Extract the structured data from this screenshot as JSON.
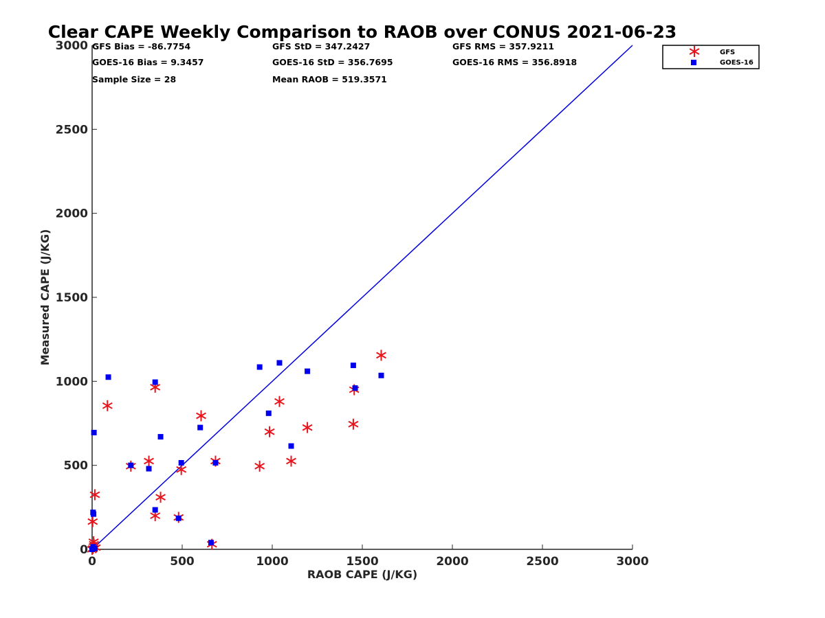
{
  "chart_data": {
    "type": "scatter",
    "title": "Clear CAPE Weekly Comparison to RAOB over CONUS 2021-06-23",
    "xlabel": "RAOB CAPE (J/KG)",
    "ylabel": "Measured CAPE (J/KG)",
    "xlim": [
      0,
      3000
    ],
    "ylim": [
      0,
      3000
    ],
    "xticks": [
      "0",
      "500",
      "1000",
      "1500",
      "2000",
      "2500",
      "3000"
    ],
    "yticks": [
      "0",
      "500",
      "1000",
      "1500",
      "2000",
      "2500",
      "3000"
    ],
    "grid": false,
    "legend_position": "top-right, outside plot",
    "reference_line": {
      "type": "y = x",
      "color": "#0000dd"
    },
    "stats": [
      [
        "GFS Bias = -86.7754",
        "GFS StD = 347.2427",
        "GFS RMS = 357.9211"
      ],
      [
        "GOES-16 Bias = 9.3457",
        "GOES-16 StD = 356.7695",
        "GOES-16 RMS = 356.8918"
      ],
      [
        "Sample Size = 28",
        "Mean RAOB = 519.3571",
        ""
      ]
    ],
    "series": [
      {
        "name": "GFS",
        "marker": "asterisk",
        "color": "#e8141c",
        "points": [
          [
            0,
            0
          ],
          [
            5,
            5
          ],
          [
            8,
            45
          ],
          [
            3,
            165
          ],
          [
            15,
            325
          ],
          [
            85,
            855
          ],
          [
            215,
            495
          ],
          [
            315,
            525
          ],
          [
            350,
            200
          ],
          [
            350,
            965
          ],
          [
            380,
            310
          ],
          [
            480,
            190
          ],
          [
            495,
            475
          ],
          [
            605,
            795
          ],
          [
            665,
            30
          ],
          [
            685,
            525
          ],
          [
            930,
            495
          ],
          [
            985,
            700
          ],
          [
            1040,
            880
          ],
          [
            1105,
            525
          ],
          [
            1195,
            725
          ],
          [
            1450,
            745
          ],
          [
            1455,
            950
          ],
          [
            1605,
            1155
          ],
          [
            20,
            10
          ],
          [
            10,
            30
          ]
        ]
      },
      {
        "name": "GOES-16",
        "marker": "square",
        "color": "#0000ee",
        "points": [
          [
            0,
            0
          ],
          [
            5,
            220
          ],
          [
            8,
            210
          ],
          [
            10,
            695
          ],
          [
            90,
            1025
          ],
          [
            215,
            500
          ],
          [
            315,
            480
          ],
          [
            350,
            235
          ],
          [
            350,
            995
          ],
          [
            380,
            670
          ],
          [
            480,
            185
          ],
          [
            495,
            515
          ],
          [
            600,
            725
          ],
          [
            660,
            40
          ],
          [
            685,
            515
          ],
          [
            930,
            1085
          ],
          [
            980,
            810
          ],
          [
            1040,
            1110
          ],
          [
            1105,
            615
          ],
          [
            1195,
            1060
          ],
          [
            1450,
            1095
          ],
          [
            1460,
            960
          ],
          [
            1605,
            1035
          ],
          [
            15,
            5
          ],
          [
            5,
            15
          ]
        ]
      }
    ]
  }
}
